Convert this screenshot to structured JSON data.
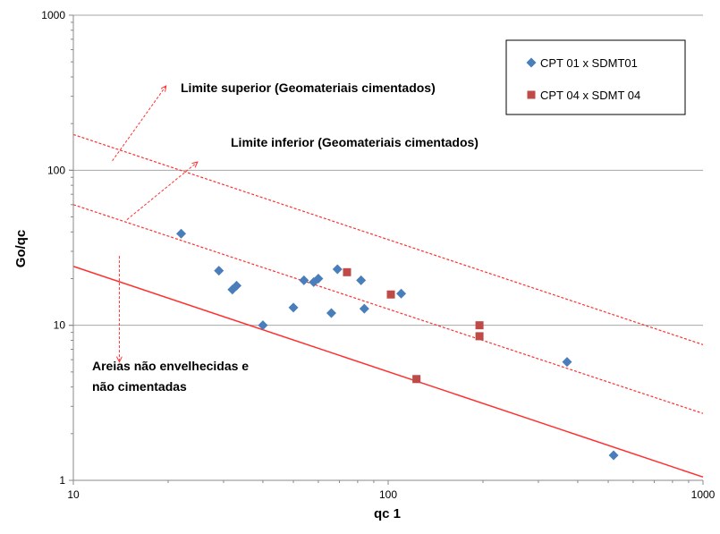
{
  "chart_data": {
    "type": "scatter",
    "title": "",
    "xlabel": "qc 1",
    "ylabel": "Go/qc",
    "xscale": "log",
    "yscale": "log",
    "xlim": [
      10,
      1000
    ],
    "ylim": [
      1,
      1000
    ],
    "x_ticks": [
      "10",
      "100",
      "1000"
    ],
    "y_ticks": [
      "1",
      "10",
      "100",
      "1000"
    ],
    "grid": "horizontal major lines",
    "legend_position": "top-right",
    "series": [
      {
        "name": "CPT 01 x SDMT01",
        "marker": "diamond",
        "color": "#4a7ebb",
        "points": [
          {
            "x": 22,
            "y": 39
          },
          {
            "x": 29,
            "y": 22.5
          },
          {
            "x": 32,
            "y": 17
          },
          {
            "x": 33,
            "y": 18
          },
          {
            "x": 40,
            "y": 10
          },
          {
            "x": 50,
            "y": 13
          },
          {
            "x": 54,
            "y": 19.5
          },
          {
            "x": 58,
            "y": 19
          },
          {
            "x": 60,
            "y": 20
          },
          {
            "x": 66,
            "y": 12
          },
          {
            "x": 69,
            "y": 23
          },
          {
            "x": 82,
            "y": 19.5
          },
          {
            "x": 84,
            "y": 12.8
          },
          {
            "x": 110,
            "y": 16
          },
          {
            "x": 370,
            "y": 5.8
          },
          {
            "x": 520,
            "y": 1.45
          }
        ]
      },
      {
        "name": "CPT 04 x SDMT 04",
        "marker": "square",
        "color": "#be4b48",
        "points": [
          {
            "x": 74,
            "y": 22
          },
          {
            "x": 102,
            "y": 15.8
          },
          {
            "x": 123,
            "y": 4.5
          },
          {
            "x": 195,
            "y": 10
          },
          {
            "x": 195,
            "y": 8.5
          }
        ]
      }
    ],
    "reference_lines": [
      {
        "name": "upper",
        "style": "dashed",
        "x": [
          10,
          1000
        ],
        "y": [
          170,
          7.5
        ]
      },
      {
        "name": "middle",
        "style": "dashed",
        "x": [
          10,
          1000
        ],
        "y": [
          60,
          2.7
        ]
      },
      {
        "name": "lower",
        "style": "solid",
        "x": [
          10,
          1000
        ],
        "y": [
          24,
          1.05
        ]
      }
    ],
    "annotations": [
      {
        "text": "Limite superior (Geomateriais cimentados)",
        "arrow": "up-right",
        "arrow_from": {
          "x": 13.3,
          "y": 115
        },
        "arrow_to": {
          "x": 19.7,
          "y": 350
        }
      },
      {
        "text": "Limite inferior (Geomateriais cimentados)",
        "arrow": "up-right",
        "arrow_from": {
          "x": 14.8,
          "y": 48
        },
        "arrow_to": {
          "x": 24.8,
          "y": 113
        }
      },
      {
        "text": "Areias não envelhecidas e",
        "arrow": "down",
        "arrow_from": {
          "x": 14,
          "y": 28
        },
        "arrow_to": {
          "x": 14,
          "y": 5.8
        }
      },
      {
        "text": "não cimentadas"
      }
    ],
    "colors": {
      "line": "#ff3030",
      "grid": "#a6a6a6",
      "axis": "#888888",
      "text": "#000000"
    }
  }
}
